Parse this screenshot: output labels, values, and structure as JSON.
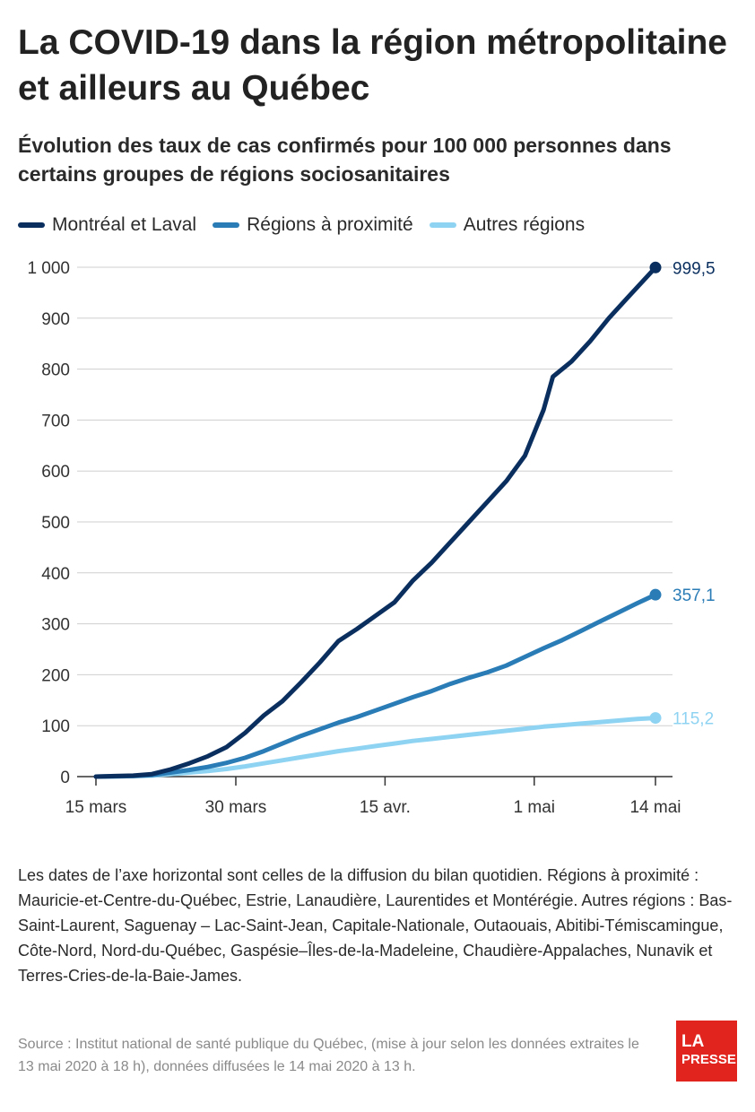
{
  "title": "La COVID-19 dans la région métropolitaine et ailleurs au Québec",
  "subtitle": "Évolution des taux de cas confirmés pour 100 000 personnes dans certains groupes de régions sociosanitaires",
  "notes": "Les dates de l’axe horizontal sont celles de la diffusion du bilan quotidien. Régions à proximité : Mauricie-et-Centre-du-Québec, Estrie, Lanaudière, Laurentides et Montérégie. Autres régions : Bas-Saint-Laurent, Saguenay – Lac-Saint-Jean, Capitale-Nationale, Outaouais, Abitibi-Témiscamingue, Côte-Nord, Nord-du-Québec, Gaspésie–Îles-de-la-Madeleine, Chaudière-Appalaches, Nunavik et Terres-Cries-de-la-Baie-James.",
  "source": "Source : Institut national de santé publique du Québec, (mise à jour selon les données extraites le 13 mai 2020 à 18 h), données diffusées le 14 mai 2020 à 13 h.",
  "logo": {
    "line1": "LA",
    "line2": "PRESSE"
  },
  "chart_data": {
    "type": "line",
    "title": "Évolution des taux de cas confirmés pour 100 000 personnes dans certains groupes de régions sociosanitaires",
    "xlabel": "",
    "ylabel": "",
    "ylim": [
      0,
      1000
    ],
    "xlim": [
      "2020-03-15",
      "2020-05-14"
    ],
    "y_ticks": [
      0,
      100,
      200,
      300,
      400,
      500,
      600,
      700,
      800,
      900,
      1000
    ],
    "y_tick_labels": [
      "0",
      "100",
      "200",
      "300",
      "400",
      "500",
      "600",
      "700",
      "800",
      "900",
      "1 000"
    ],
    "x_ticks": [
      "2020-03-15",
      "2020-03-30",
      "2020-04-15",
      "2020-05-01",
      "2020-05-14"
    ],
    "x_tick_labels": [
      "15 mars",
      "30 mars",
      "15 avr.",
      "1 mai",
      "14 mai"
    ],
    "grid": "horizontal",
    "legend_position": "top",
    "series": [
      {
        "name": "Montréal et Laval",
        "color": "#0a2f5f",
        "end_label": "999,5",
        "points": [
          [
            "2020-03-15",
            0
          ],
          [
            "2020-03-17",
            1
          ],
          [
            "2020-03-19",
            2
          ],
          [
            "2020-03-21",
            5
          ],
          [
            "2020-03-23",
            14
          ],
          [
            "2020-03-25",
            26
          ],
          [
            "2020-03-27",
            40
          ],
          [
            "2020-03-29",
            58
          ],
          [
            "2020-03-31",
            86
          ],
          [
            "2020-04-02",
            120
          ],
          [
            "2020-04-04",
            148
          ],
          [
            "2020-04-06",
            185
          ],
          [
            "2020-04-08",
            224
          ],
          [
            "2020-04-10",
            266
          ],
          [
            "2020-04-12",
            290
          ],
          [
            "2020-04-14",
            316
          ],
          [
            "2020-04-16",
            342
          ],
          [
            "2020-04-18",
            385
          ],
          [
            "2020-04-20",
            420
          ],
          [
            "2020-04-22",
            460
          ],
          [
            "2020-04-24",
            500
          ],
          [
            "2020-04-26",
            540
          ],
          [
            "2020-04-28",
            580
          ],
          [
            "2020-04-30",
            630
          ],
          [
            "2020-05-02",
            720
          ],
          [
            "2020-05-03",
            785
          ],
          [
            "2020-05-05",
            815
          ],
          [
            "2020-05-07",
            855
          ],
          [
            "2020-05-09",
            900
          ],
          [
            "2020-05-11",
            940
          ],
          [
            "2020-05-14",
            999.5
          ]
        ]
      },
      {
        "name": "Régions à proximité",
        "color": "#2a7cb6",
        "end_label": "357,1",
        "points": [
          [
            "2020-03-15",
            0
          ],
          [
            "2020-03-19",
            1
          ],
          [
            "2020-03-21",
            3
          ],
          [
            "2020-03-23",
            8
          ],
          [
            "2020-03-25",
            13
          ],
          [
            "2020-03-27",
            19
          ],
          [
            "2020-03-29",
            27
          ],
          [
            "2020-03-31",
            37
          ],
          [
            "2020-04-02",
            50
          ],
          [
            "2020-04-04",
            65
          ],
          [
            "2020-04-06",
            80
          ],
          [
            "2020-04-08",
            93
          ],
          [
            "2020-04-10",
            106
          ],
          [
            "2020-04-12",
            117
          ],
          [
            "2020-04-14",
            130
          ],
          [
            "2020-04-16",
            143
          ],
          [
            "2020-04-18",
            156
          ],
          [
            "2020-04-20",
            168
          ],
          [
            "2020-04-22",
            182
          ],
          [
            "2020-04-24",
            194
          ],
          [
            "2020-04-26",
            205
          ],
          [
            "2020-04-28",
            218
          ],
          [
            "2020-04-30",
            235
          ],
          [
            "2020-05-02",
            252
          ],
          [
            "2020-05-04",
            268
          ],
          [
            "2020-05-06",
            286
          ],
          [
            "2020-05-08",
            304
          ],
          [
            "2020-05-10",
            322
          ],
          [
            "2020-05-12",
            340
          ],
          [
            "2020-05-14",
            357.1
          ]
        ]
      },
      {
        "name": "Autres régions",
        "color": "#8fd3f2",
        "end_label": "115,2",
        "points": [
          [
            "2020-03-15",
            0
          ],
          [
            "2020-03-19",
            1
          ],
          [
            "2020-03-21",
            2
          ],
          [
            "2020-03-23",
            5
          ],
          [
            "2020-03-25",
            8
          ],
          [
            "2020-03-27",
            11
          ],
          [
            "2020-03-29",
            15
          ],
          [
            "2020-03-31",
            20
          ],
          [
            "2020-04-02",
            26
          ],
          [
            "2020-04-04",
            32
          ],
          [
            "2020-04-06",
            38
          ],
          [
            "2020-04-08",
            44
          ],
          [
            "2020-04-10",
            50
          ],
          [
            "2020-04-12",
            55
          ],
          [
            "2020-04-14",
            60
          ],
          [
            "2020-04-16",
            65
          ],
          [
            "2020-04-18",
            70
          ],
          [
            "2020-04-20",
            74
          ],
          [
            "2020-04-22",
            78
          ],
          [
            "2020-04-24",
            82
          ],
          [
            "2020-04-26",
            86
          ],
          [
            "2020-04-28",
            90
          ],
          [
            "2020-04-30",
            94
          ],
          [
            "2020-05-02",
            98
          ],
          [
            "2020-05-04",
            101
          ],
          [
            "2020-05-06",
            104
          ],
          [
            "2020-05-08",
            107
          ],
          [
            "2020-05-10",
            110
          ],
          [
            "2020-05-12",
            113
          ],
          [
            "2020-05-14",
            115.2
          ]
        ]
      }
    ]
  }
}
